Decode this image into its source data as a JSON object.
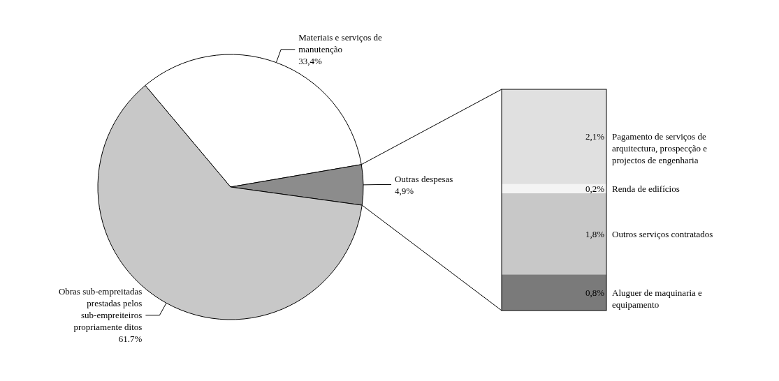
{
  "chart_data": [
    {
      "type": "pie",
      "categories": [
        "Materiais e serviços de manutenção",
        "Outras despesas",
        "Obras sub-empreitadas prestadas pelos sub-empreiteiros propriamente ditos"
      ],
      "values": [
        33.4,
        4.9,
        61.7
      ],
      "value_labels": [
        "33,4%",
        "4,9%",
        "61.7%"
      ],
      "colors": [
        "#ffffff",
        "#8c8c8c",
        "#c8c8c8"
      ],
      "legend": false
    },
    {
      "type": "bar",
      "stacked": true,
      "categories": [
        null
      ],
      "legend": false,
      "series": [
        {
          "name": "Aluguer de maquinaria e equipamento",
          "color": "#7a7a7a",
          "values": [
            0.8
          ],
          "value_labels": [
            "0,8%"
          ]
        },
        {
          "name": "Outros serviços contratados",
          "color": "#c8c8c8",
          "values": [
            1.8
          ],
          "value_labels": [
            "1,8%"
          ]
        },
        {
          "name": "Renda de edifícios",
          "color": "#f4f4f4",
          "values": [
            0.2
          ],
          "value_labels": [
            "0,2%"
          ]
        },
        {
          "name": "Pagamento de serviços de arquitectura, prospecção e projectos de engenharia",
          "color": "#e0e0e0",
          "values": [
            2.1
          ],
          "value_labels": [
            "2,1%"
          ]
        }
      ]
    }
  ]
}
